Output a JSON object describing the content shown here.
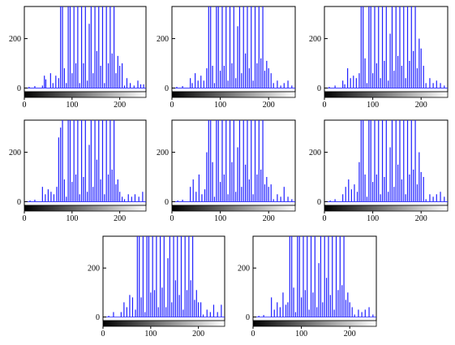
{
  "chart_data": [
    {
      "type": "bar",
      "title": "",
      "xlabel": "",
      "ylabel": "",
      "xlim": [
        0,
        255
      ],
      "ylim": [
        -15,
        330
      ],
      "colorbar": "grayscale",
      "xticks": [
        0,
        100,
        200
      ],
      "yticks": [
        0,
        200
      ],
      "series_color": "#1f1fff",
      "x": [
        10,
        22,
        38,
        42,
        45,
        55,
        60,
        66,
        72,
        76,
        80,
        84,
        88,
        92,
        96,
        100,
        104,
        108,
        112,
        116,
        120,
        124,
        128,
        132,
        136,
        140,
        144,
        148,
        152,
        156,
        160,
        164,
        168,
        172,
        176,
        180,
        184,
        188,
        192,
        196,
        200,
        205,
        210,
        215,
        222,
        230,
        238,
        244,
        250
      ],
      "values": [
        5,
        8,
        10,
        50,
        35,
        60,
        20,
        50,
        40,
        330,
        330,
        80,
        20,
        330,
        330,
        60,
        330,
        100,
        330,
        20,
        330,
        100,
        330,
        30,
        260,
        330,
        60,
        330,
        150,
        330,
        90,
        330,
        20,
        330,
        100,
        330,
        140,
        330,
        60,
        130,
        90,
        100,
        10,
        40,
        20,
        10,
        30,
        15,
        15
      ]
    },
    {
      "type": "bar",
      "title": "",
      "xlabel": "",
      "ylabel": "",
      "xlim": [
        0,
        255
      ],
      "ylim": [
        -15,
        330
      ],
      "colorbar": "grayscale",
      "xticks": [
        0,
        100,
        200
      ],
      "yticks": [
        0,
        200
      ],
      "series_color": "#1f1fff",
      "x": [
        10,
        22,
        38,
        42,
        48,
        54,
        60,
        66,
        72,
        76,
        80,
        84,
        88,
        92,
        96,
        100,
        104,
        108,
        112,
        116,
        120,
        124,
        128,
        132,
        136,
        140,
        144,
        148,
        152,
        156,
        160,
        164,
        168,
        172,
        176,
        180,
        184,
        188,
        192,
        196,
        200,
        205,
        210,
        218,
        225,
        232,
        240,
        248
      ],
      "values": [
        5,
        8,
        40,
        20,
        60,
        30,
        50,
        30,
        80,
        330,
        330,
        90,
        20,
        330,
        330,
        70,
        330,
        90,
        330,
        30,
        330,
        100,
        330,
        40,
        250,
        330,
        60,
        330,
        140,
        330,
        80,
        330,
        30,
        330,
        100,
        330,
        120,
        330,
        70,
        110,
        80,
        60,
        20,
        30,
        10,
        20,
        30,
        10
      ]
    },
    {
      "type": "bar",
      "title": "",
      "xlabel": "",
      "ylabel": "",
      "xlim": [
        0,
        255
      ],
      "ylim": [
        -15,
        330
      ],
      "colorbar": "grayscale",
      "xticks": [
        0,
        100,
        200
      ],
      "yticks": [
        0,
        200
      ],
      "series_color": "#1f1fff",
      "x": [
        10,
        22,
        38,
        42,
        48,
        54,
        60,
        66,
        72,
        76,
        80,
        84,
        88,
        92,
        96,
        100,
        104,
        108,
        112,
        116,
        120,
        124,
        128,
        132,
        136,
        140,
        144,
        148,
        152,
        156,
        160,
        164,
        168,
        172,
        176,
        180,
        184,
        188,
        192,
        196,
        200,
        205,
        210,
        218,
        225,
        232,
        240,
        248
      ],
      "values": [
        5,
        10,
        30,
        15,
        80,
        40,
        50,
        40,
        60,
        330,
        330,
        120,
        20,
        330,
        330,
        60,
        330,
        100,
        330,
        40,
        330,
        110,
        330,
        30,
        220,
        330,
        70,
        330,
        130,
        330,
        90,
        330,
        40,
        330,
        110,
        330,
        150,
        330,
        80,
        200,
        160,
        90,
        20,
        40,
        20,
        30,
        20,
        10
      ]
    },
    {
      "type": "bar",
      "title": "",
      "xlabel": "",
      "ylabel": "",
      "xlim": [
        0,
        255
      ],
      "ylim": [
        -15,
        330
      ],
      "colorbar": "grayscale",
      "xticks": [
        0,
        100,
        200
      ],
      "yticks": [
        0,
        200
      ],
      "series_color": "#1f1fff",
      "x": [
        12,
        22,
        38,
        44,
        50,
        56,
        62,
        68,
        72,
        76,
        80,
        84,
        88,
        92,
        96,
        100,
        104,
        108,
        112,
        116,
        120,
        124,
        128,
        132,
        136,
        140,
        144,
        148,
        152,
        156,
        160,
        164,
        168,
        172,
        176,
        180,
        184,
        188,
        192,
        196,
        200,
        205,
        210,
        218,
        225,
        232,
        240,
        248
      ],
      "values": [
        5,
        8,
        60,
        30,
        50,
        40,
        30,
        60,
        260,
        300,
        330,
        90,
        20,
        330,
        330,
        80,
        330,
        110,
        330,
        30,
        330,
        100,
        330,
        40,
        230,
        330,
        60,
        330,
        170,
        330,
        90,
        330,
        30,
        330,
        110,
        330,
        130,
        330,
        70,
        90,
        40,
        20,
        10,
        30,
        20,
        30,
        20,
        40
      ]
    },
    {
      "type": "bar",
      "title": "",
      "xlabel": "",
      "ylabel": "",
      "xlim": [
        0,
        255
      ],
      "ylim": [
        -15,
        330
      ],
      "colorbar": "grayscale",
      "xticks": [
        0,
        100,
        200
      ],
      "yticks": [
        0,
        200
      ],
      "series_color": "#1f1fff",
      "x": [
        12,
        22,
        38,
        44,
        50,
        56,
        62,
        68,
        72,
        76,
        80,
        84,
        88,
        92,
        96,
        100,
        104,
        108,
        112,
        116,
        120,
        124,
        128,
        132,
        136,
        140,
        144,
        148,
        152,
        156,
        160,
        164,
        168,
        172,
        176,
        180,
        184,
        188,
        192,
        196,
        200,
        205,
        210,
        218,
        225,
        232,
        240,
        248
      ],
      "values": [
        5,
        8,
        60,
        90,
        40,
        110,
        30,
        50,
        200,
        330,
        330,
        160,
        20,
        330,
        330,
        80,
        330,
        110,
        330,
        30,
        330,
        160,
        330,
        40,
        220,
        330,
        60,
        330,
        150,
        330,
        90,
        330,
        30,
        330,
        110,
        330,
        130,
        330,
        70,
        100,
        60,
        70,
        10,
        30,
        20,
        60,
        20,
        10
      ]
    },
    {
      "type": "bar",
      "title": "",
      "xlabel": "",
      "ylabel": "",
      "xlim": [
        0,
        255
      ],
      "ylim": [
        -15,
        330
      ],
      "colorbar": "grayscale",
      "xticks": [
        0,
        100,
        200
      ],
      "yticks": [
        0,
        200
      ],
      "series_color": "#1f1fff",
      "x": [
        12,
        22,
        38,
        44,
        50,
        56,
        62,
        68,
        72,
        76,
        80,
        84,
        88,
        92,
        96,
        100,
        104,
        108,
        112,
        116,
        120,
        124,
        128,
        132,
        136,
        140,
        144,
        148,
        152,
        156,
        160,
        164,
        168,
        172,
        176,
        180,
        184,
        188,
        192,
        196,
        200,
        205,
        210,
        218,
        225,
        232,
        240,
        248
      ],
      "values": [
        5,
        10,
        30,
        60,
        90,
        50,
        70,
        40,
        160,
        330,
        330,
        110,
        20,
        330,
        330,
        80,
        330,
        110,
        330,
        30,
        330,
        100,
        330,
        40,
        220,
        330,
        60,
        330,
        150,
        330,
        90,
        330,
        30,
        330,
        110,
        330,
        130,
        330,
        70,
        200,
        120,
        100,
        10,
        30,
        20,
        30,
        40,
        20
      ]
    },
    {
      "type": "bar",
      "title": "",
      "xlabel": "",
      "ylabel": "",
      "xlim": [
        0,
        255
      ],
      "ylim": [
        -15,
        330
      ],
      "colorbar": "grayscale",
      "xticks": [
        0,
        100,
        200
      ],
      "yticks": [
        0,
        200
      ],
      "series_color": "#1f1fff",
      "x": [
        12,
        22,
        38,
        44,
        50,
        56,
        62,
        68,
        72,
        76,
        80,
        84,
        88,
        92,
        96,
        100,
        104,
        108,
        112,
        116,
        120,
        124,
        128,
        132,
        136,
        140,
        144,
        148,
        152,
        156,
        160,
        164,
        168,
        172,
        176,
        180,
        184,
        188,
        192,
        196,
        200,
        205,
        210,
        218,
        225,
        232,
        240,
        248
      ],
      "values": [
        5,
        20,
        20,
        60,
        40,
        90,
        80,
        30,
        330,
        330,
        80,
        330,
        20,
        330,
        330,
        100,
        330,
        110,
        330,
        40,
        330,
        120,
        330,
        40,
        240,
        330,
        60,
        330,
        150,
        330,
        90,
        330,
        30,
        330,
        110,
        330,
        150,
        330,
        70,
        110,
        60,
        60,
        10,
        30,
        20,
        50,
        20,
        50
      ]
    },
    {
      "type": "bar",
      "title": "",
      "xlabel": "",
      "ylabel": "",
      "xlim": [
        0,
        255
      ],
      "ylim": [
        -15,
        330
      ],
      "colorbar": "grayscale",
      "xticks": [
        0,
        100,
        200
      ],
      "yticks": [
        0,
        200
      ],
      "series_color": "#1f1fff",
      "x": [
        12,
        22,
        38,
        44,
        50,
        56,
        62,
        68,
        72,
        76,
        80,
        84,
        88,
        92,
        96,
        100,
        104,
        108,
        112,
        116,
        120,
        124,
        128,
        132,
        136,
        140,
        144,
        148,
        152,
        156,
        160,
        164,
        168,
        172,
        176,
        180,
        184,
        188,
        192,
        196,
        200,
        205,
        210,
        218,
        225,
        232,
        240,
        248
      ],
      "values": [
        5,
        8,
        80,
        30,
        60,
        40,
        100,
        50,
        60,
        330,
        330,
        120,
        20,
        330,
        330,
        80,
        330,
        110,
        330,
        30,
        330,
        100,
        330,
        40,
        220,
        330,
        60,
        330,
        160,
        330,
        90,
        330,
        30,
        330,
        110,
        330,
        130,
        330,
        70,
        100,
        60,
        40,
        10,
        30,
        20,
        30,
        40,
        10
      ]
    }
  ]
}
